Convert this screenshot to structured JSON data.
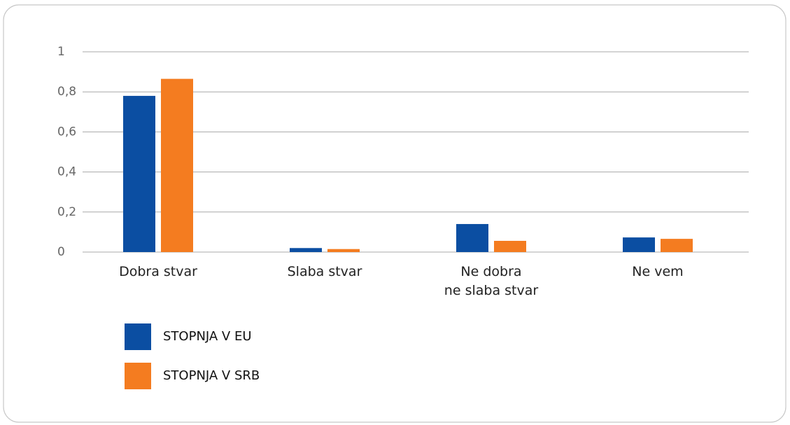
{
  "chart_data": {
    "type": "bar",
    "categories": [
      "Dobra stvar",
      "Slaba stvar",
      "Ne dobra\nne slaba stvar",
      "Ne vem"
    ],
    "series": [
      {
        "name": "STOPNJA V EU",
        "color": "#0b4ea2",
        "values": [
          0.78,
          0.02,
          0.14,
          0.073
        ]
      },
      {
        "name": "STOPNJA V SRB",
        "color": "#f47c20",
        "values": [
          0.865,
          0.015,
          0.056,
          0.066
        ]
      }
    ],
    "ylim": [
      0,
      1
    ],
    "yticks": [
      0,
      {
        "value": 0.2,
        "label": "0,2"
      },
      {
        "value": 0.4,
        "label": "0,4"
      },
      {
        "value": 0.6,
        "label": "0,6"
      },
      {
        "value": 0.8,
        "label": "0,8"
      },
      1
    ],
    "grid": true
  }
}
